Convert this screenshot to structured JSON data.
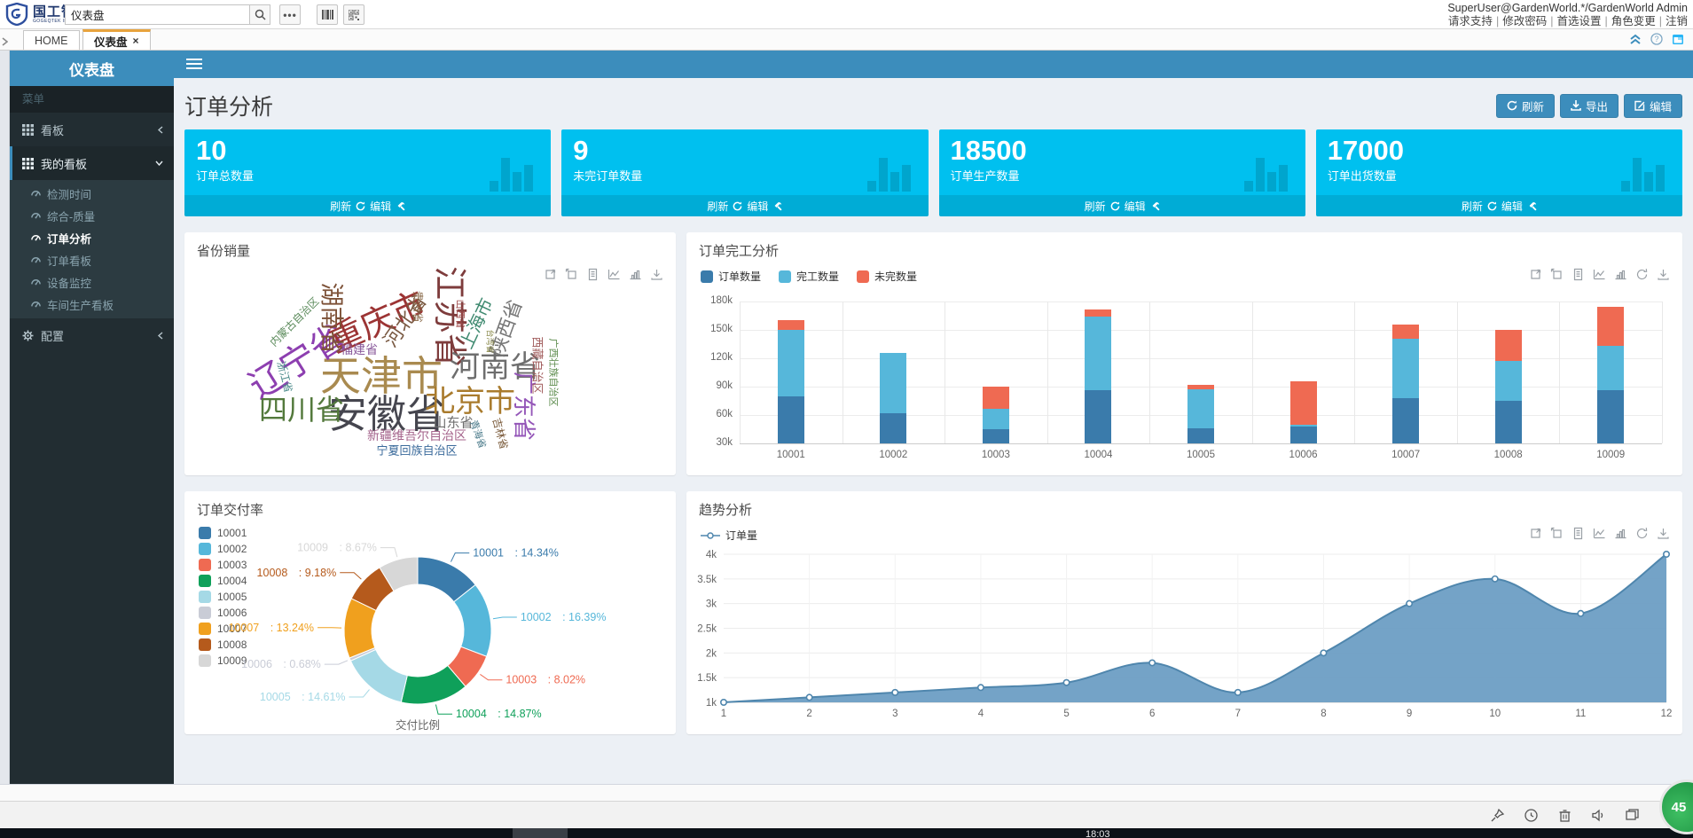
{
  "header": {
    "logo_title": "国工智能",
    "logo_subtitle": "GOGEQTEK INTELLIGENCE",
    "search_value": "仪表盘",
    "user": "SuperUser@GardenWorld.*/GardenWorld Admin",
    "links": [
      "请求支持",
      "修改密码",
      "首选设置",
      "角色变更",
      "注销"
    ]
  },
  "tabs": {
    "home": "HOME",
    "active": "仪表盘"
  },
  "sidebar": {
    "title": "仪表盘",
    "menu_label": "菜单",
    "group1": "看板",
    "group2": "我的看板",
    "subitems": [
      "检测时间",
      "综合-质量",
      "订单分析",
      "订单看板",
      "设备监控",
      "车间生产看板"
    ],
    "active_subitem": "订单分析",
    "config": "配置"
  },
  "page": {
    "title": "订单分析",
    "buttons": {
      "refresh": "刷新",
      "export": "导出",
      "edit": "编辑"
    },
    "card_footer": {
      "refresh": "刷新",
      "edit": "编辑"
    }
  },
  "kpi": [
    {
      "value": "10",
      "label": "订单总数量"
    },
    {
      "value": "9",
      "label": "未完订单数量"
    },
    {
      "value": "18500",
      "label": "订单生产数量"
    },
    {
      "value": "17000",
      "label": "订单出货数量"
    }
  ],
  "colors": {
    "primary": "#3c8dbc",
    "kpi_bg": "#00c0ef",
    "tab_accent": "#e8a33d",
    "sidebar_bg": "#222d32"
  },
  "chart_data": [
    {
      "type": "wordcloud",
      "title": "省份销量",
      "words": [
        {
          "text": "天津市",
          "x": 222,
          "y": 162,
          "size": 46,
          "color": "#a98a4f",
          "rotate": 0
        },
        {
          "text": "安徽省",
          "x": 228,
          "y": 206,
          "size": 44,
          "color": "#45454e",
          "rotate": 0
        },
        {
          "text": "辽宁省",
          "x": 128,
          "y": 146,
          "size": 40,
          "color": "#8d3fb0",
          "rotate": -32
        },
        {
          "text": "江苏省",
          "x": 298,
          "y": 95,
          "size": 38,
          "color": "#7e3c3c",
          "rotate": 90
        },
        {
          "text": "重庆市",
          "x": 218,
          "y": 102,
          "size": 38,
          "color": "#9c3434",
          "rotate": -24
        },
        {
          "text": "河南省",
          "x": 350,
          "y": 152,
          "size": 34,
          "color": "#6e6e6e",
          "rotate": 0
        },
        {
          "text": "北京市",
          "x": 322,
          "y": 191,
          "size": 34,
          "color": "#a97b2d",
          "rotate": 0
        },
        {
          "text": "四川省",
          "x": 132,
          "y": 200,
          "size": 32,
          "color": "#53793c",
          "rotate": 0
        },
        {
          "text": "湖南省",
          "x": 165,
          "y": 97,
          "size": 27,
          "color": "#7d5137",
          "rotate": 90
        },
        {
          "text": "广东省",
          "x": 383,
          "y": 196,
          "size": 26,
          "color": "#9456b8",
          "rotate": 90
        },
        {
          "text": "河北省",
          "x": 249,
          "y": 100,
          "size": 22,
          "color": "#7a5a43",
          "rotate": -55
        },
        {
          "text": "陕西省",
          "x": 363,
          "y": 108,
          "size": 22,
          "color": "#777777",
          "rotate": -70
        },
        {
          "text": "上海市",
          "x": 330,
          "y": 103,
          "size": 20,
          "color": "#3f8a70",
          "rotate": -65
        },
        {
          "text": "山东省",
          "x": 303,
          "y": 215,
          "size": 15,
          "color": "#6e6e6e",
          "rotate": 0
        },
        {
          "text": "福建省",
          "x": 197,
          "y": 132,
          "size": 14,
          "color": "#8a5a9b",
          "rotate": 0
        },
        {
          "text": "新疆维吾尔自治区",
          "x": 262,
          "y": 229,
          "size": 14,
          "color": "#a4638b",
          "rotate": 0
        },
        {
          "text": "宁夏回族自治区",
          "x": 262,
          "y": 246,
          "size": 13,
          "color": "#3a6a9b",
          "rotate": 0
        },
        {
          "text": "西藏自治区",
          "x": 398,
          "y": 150,
          "size": 13,
          "color": "#a05a5a",
          "rotate": 90
        },
        {
          "text": "内蒙古自治区",
          "x": 124,
          "y": 101,
          "size": 12,
          "color": "#5a8a5a",
          "rotate": -45
        },
        {
          "text": "浙江省",
          "x": 113,
          "y": 163,
          "size": 12,
          "color": "#4a8a8a",
          "rotate": 75
        },
        {
          "text": "贵州省",
          "x": 263,
          "y": 84,
          "size": 12,
          "color": "#8a6a4a",
          "rotate": 90
        },
        {
          "text": "吉林省",
          "x": 356,
          "y": 227,
          "size": 12,
          "color": "#7a5a3a",
          "rotate": 75
        },
        {
          "text": "山西省",
          "x": 310,
          "y": 92,
          "size": 11,
          "color": "#a04a4a",
          "rotate": 90
        },
        {
          "text": "广西壮族自治区",
          "x": 415,
          "y": 158,
          "size": 11,
          "color": "#5a8a4a",
          "rotate": 90
        },
        {
          "text": "青海省",
          "x": 330,
          "y": 228,
          "size": 11,
          "color": "#4a7a8a",
          "rotate": 70
        },
        {
          "text": "台湾省",
          "x": 344,
          "y": 123,
          "size": 9,
          "color": "#8a8a4a",
          "rotate": 90
        }
      ]
    },
    {
      "type": "bar",
      "title": "订单完工分析",
      "stacked": true,
      "categories": [
        "10001",
        "10002",
        "10003",
        "10004",
        "10005",
        "10006",
        "10007",
        "10008",
        "10009"
      ],
      "series": [
        {
          "name": "订单数量",
          "color": "#3a7bab",
          "values": [
            80,
            62,
            45,
            86,
            46,
            48,
            78,
            75,
            86
          ]
        },
        {
          "name": "完工数量",
          "color": "#56b7da",
          "values": [
            70,
            64,
            22,
            78,
            41,
            2,
            63,
            42,
            47
          ]
        },
        {
          "name": "未完数量",
          "color": "#ef6a52",
          "values": [
            10,
            0,
            23,
            8,
            5,
            46,
            15,
            33,
            41
          ]
        }
      ],
      "unit": "k",
      "ymin": 30,
      "ymax": 180,
      "ystep": 30,
      "y_ticks": [
        "30k",
        "60k",
        "90k",
        "120k",
        "150k",
        "180k"
      ],
      "legend_position": "top-left",
      "grid": true
    },
    {
      "type": "pie",
      "title": "订单交付率",
      "center_label": "交付比例",
      "labels": [
        "10001",
        "10002",
        "10003",
        "10004",
        "10005",
        "10006",
        "10007",
        "10008",
        "10009"
      ],
      "values": [
        14.34,
        16.39,
        8.02,
        14.87,
        14.61,
        0.68,
        13.24,
        9.18,
        8.67
      ],
      "unit": "%",
      "colors": [
        "#3a7bab",
        "#56b7da",
        "#ef6a52",
        "#0fa05a",
        "#a5d9e6",
        "#c9ccd6",
        "#f0a01e",
        "#b55a1c",
        "#d7d7d7"
      ],
      "legend_position": "left",
      "donut": true
    },
    {
      "type": "area",
      "title": "趋势分析",
      "series_name": "订单量",
      "x": [
        1,
        2,
        3,
        4,
        5,
        6,
        7,
        8,
        9,
        10,
        11,
        12
      ],
      "values": [
        1000,
        1100,
        1200,
        1300,
        1400,
        1800,
        1200,
        2000,
        3000,
        3500,
        2800,
        4000
      ],
      "ymin": 1000,
      "ymax": 4000,
      "y_ticks": [
        "1k",
        "1.5k",
        "2k",
        "2.5k",
        "3k",
        "3.5k",
        "4k"
      ],
      "line_color": "#4f86ad",
      "fill_color": "#6d9ec4",
      "smooth": true,
      "grid": true,
      "legend_position": "top-left"
    }
  ],
  "floating_badge": {
    "value": "45"
  },
  "taskbar": {
    "clock": "18:03"
  }
}
